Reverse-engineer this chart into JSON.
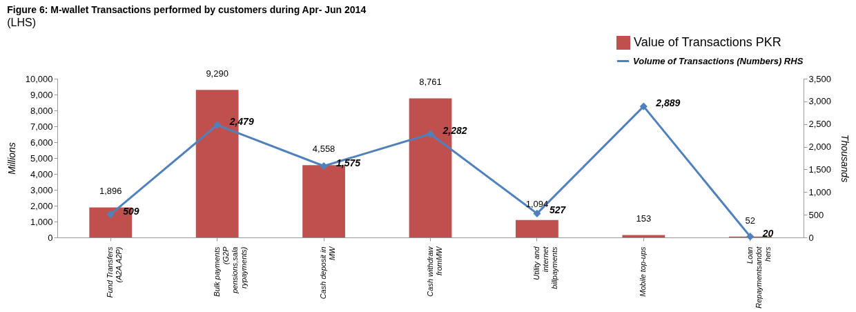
{
  "chart_data": {
    "type": "bar",
    "title": "Figure 6: M-wallet Transactions performed by customers during Apr- Jun 2014",
    "subtitle": "(LHS)",
    "categories": [
      "Fund Transfers (A2A,A2P)",
      "Bulk payments (G2P pensions,sala rypayments)",
      "Cash deposit in MW",
      "Cash withdraw fromMW",
      "Utility and internet billpayments",
      "Mobile top-ups",
      "Loan Repaymentsandot hers"
    ],
    "series": [
      {
        "name": "Value of Transactions PKR",
        "color": "#c0504d",
        "values": [
          1896,
          9290,
          4558,
          8761,
          1094,
          153,
          52
        ],
        "value_labels": [
          "1,896",
          "9,290",
          "4,558",
          "8,761",
          "1,094",
          "153",
          "52"
        ]
      },
      {
        "name": "Volume of Transactions (Numbers) RHS",
        "type": "line",
        "axis": "y2",
        "color": "#4f81bd",
        "values": [
          509,
          2479,
          1575,
          2282,
          527,
          2889,
          20
        ],
        "value_labels": [
          "509",
          "2,479",
          "1,575",
          "2,282",
          "527",
          "2,889",
          "20"
        ]
      }
    ],
    "ylabel": "Millions",
    "y2label": "Thousands",
    "ylim": [
      0,
      10000
    ],
    "yticks": [
      0,
      {
        "value": 1000,
        "label": "1,000"
      },
      {
        "value": 2000,
        "label": "2,000"
      },
      {
        "value": 3000,
        "label": "3,000"
      },
      {
        "value": 4000,
        "label": "4,000"
      },
      {
        "value": 5000,
        "label": "5,000"
      },
      {
        "value": 6000,
        "label": "6,000"
      },
      {
        "value": 7000,
        "label": "7,000"
      },
      {
        "value": 8000,
        "label": "8,000"
      },
      {
        "value": 9000,
        "label": "9,000"
      },
      {
        "value": 10000,
        "label": "10,000"
      }
    ],
    "y2lim": [
      0,
      3500
    ],
    "y2ticks": [
      0,
      500,
      {
        "value": 1000,
        "label": "1,000"
      },
      {
        "value": 1500,
        "label": "1,500"
      },
      {
        "value": 2000,
        "label": "2,000"
      },
      {
        "value": 2500,
        "label": "2,500"
      },
      {
        "value": 3000,
        "label": "3,000"
      },
      {
        "value": 3500,
        "label": "3,500"
      }
    ],
    "marker": "diamond",
    "legend": "top right",
    "grid": false
  }
}
